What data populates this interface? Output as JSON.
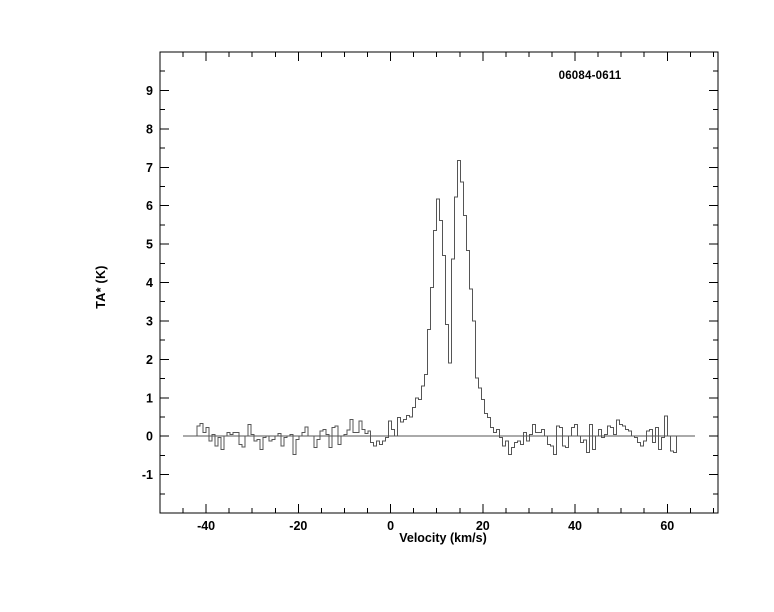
{
  "window": {
    "background_color": "#ffffff"
  },
  "figure": {
    "annotation": "06084-0611",
    "xlabel": "Velocity (km/s)",
    "ylabel": "TA* (K)"
  },
  "chart_data": {
    "type": "line",
    "style": "step-histogram-spectrum",
    "title": "",
    "annotation": "06084-0611",
    "annotation_position": "top-right-inside",
    "xlabel": "Velocity (km/s)",
    "ylabel": "TA* (K)",
    "xlim": [
      -50,
      71
    ],
    "ylim": [
      -2,
      10
    ],
    "x_major_ticks": [
      -40,
      -20,
      0,
      20,
      40,
      60
    ],
    "x_minor_step": 5,
    "y_major_ticks": [
      -1,
      0,
      1,
      2,
      3,
      4,
      5,
      6,
      7,
      8,
      9
    ],
    "y_minor_step": 0.5,
    "grid": false,
    "legend": "none",
    "frame_color": "#000000",
    "line_color": "#555555",
    "label_color": "#000000",
    "baseline": {
      "y": 0,
      "x_range": [
        -45,
        66
      ]
    },
    "series": [
      {
        "name": "spectrum",
        "v_start": -42.0,
        "channel_width": 0.65,
        "ta_values": [
          0.26,
          0.33,
          0.1,
          0.22,
          -0.13,
          0.04,
          -0.26,
          -0.04,
          -0.35,
          0.0,
          0.09,
          0.04,
          0.09,
          0.1,
          -0.22,
          -0.28,
          0.0,
          0.3,
          0.04,
          -0.13,
          -0.09,
          -0.35,
          -0.04,
          0.0,
          -0.13,
          -0.09,
          0.0,
          0.07,
          -0.26,
          -0.04,
          0.0,
          0.04,
          -0.48,
          -0.09,
          0.0,
          0.09,
          0.24,
          0.0,
          0.0,
          -0.3,
          -0.09,
          0.13,
          0.17,
          0.04,
          -0.3,
          0.22,
          0.26,
          -0.22,
          0.0,
          0.04,
          0.16,
          0.43,
          0.1,
          0.1,
          0.39,
          0.17,
          0.07,
          0.13,
          -0.17,
          -0.26,
          -0.13,
          -0.22,
          -0.13,
          -0.04,
          0.39,
          0.17,
          0.0,
          0.48,
          0.37,
          0.43,
          0.54,
          0.5,
          0.74,
          1.0,
          0.96,
          1.3,
          1.6,
          2.78,
          3.87,
          5.35,
          6.17,
          5.61,
          4.7,
          2.91,
          1.91,
          4.61,
          6.22,
          7.17,
          6.61,
          5.74,
          4.83,
          3.83,
          3.0,
          1.52,
          1.26,
          0.96,
          0.59,
          0.48,
          0.22,
          0.09,
          0.17,
          -0.04,
          -0.26,
          -0.13,
          -0.48,
          -0.3,
          -0.17,
          -0.13,
          -0.22,
          0.09,
          -0.13,
          0.04,
          0.3,
          0.09,
          0.1,
          0.17,
          0.0,
          -0.22,
          -0.26,
          -0.48,
          0.26,
          0.22,
          -0.26,
          -0.3,
          0.0,
          0.22,
          0.3,
          0.0,
          -0.17,
          -0.1,
          -0.43,
          0.3,
          -0.35,
          0.0,
          0.17,
          -0.04,
          0.04,
          0.26,
          0.22,
          0.04,
          0.42,
          0.3,
          0.26,
          0.17,
          0.13,
          0.0,
          -0.04,
          -0.17,
          -0.26,
          -0.13,
          0.13,
          0.17,
          -0.17,
          0.22,
          -0.35,
          -0.04,
          0.52,
          0.0,
          -0.39,
          -0.43
        ]
      }
    ]
  }
}
